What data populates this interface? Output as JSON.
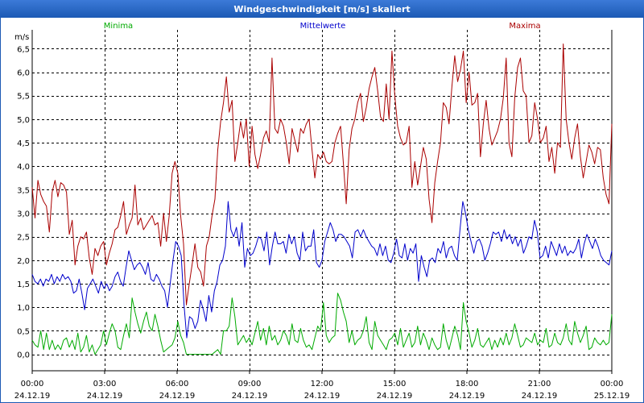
{
  "window": {
    "title": "Windgeschwindigkeit [m/s] skaliert",
    "title_bar_color": "#1c5ab4",
    "title_bar_color_light": "#3c7ad8"
  },
  "chart_data": {
    "type": "line",
    "title": "Windgeschwindigkeit [m/s] skaliert",
    "ylabel": "m/s",
    "xlabel": "",
    "ylim": [
      -0.35,
      6.9
    ],
    "xlim": [
      0,
      24
    ],
    "grid": true,
    "legend_position": "top",
    "y_ticks": [
      {
        "value": 0.0,
        "label": "0,0"
      },
      {
        "value": 0.5,
        "label": "0,5"
      },
      {
        "value": 1.0,
        "label": "1,0"
      },
      {
        "value": 1.5,
        "label": "1,5"
      },
      {
        "value": 2.0,
        "label": "2,0"
      },
      {
        "value": 2.5,
        "label": "2,5"
      },
      {
        "value": 3.0,
        "label": "3,0"
      },
      {
        "value": 3.5,
        "label": "3,5"
      },
      {
        "value": 4.0,
        "label": "4,0"
      },
      {
        "value": 4.5,
        "label": "4,5"
      },
      {
        "value": 5.0,
        "label": "5,0"
      },
      {
        "value": 5.5,
        "label": "5,5"
      },
      {
        "value": 6.0,
        "label": "6,0"
      },
      {
        "value": 6.5,
        "label": "6,5"
      }
    ],
    "x_ticks": [
      {
        "value": 0,
        "time": "00:00",
        "date": "24.12.19"
      },
      {
        "value": 3,
        "time": "03:00",
        "date": "24.12.19"
      },
      {
        "value": 6,
        "time": "06:00",
        "date": "24.12.19"
      },
      {
        "value": 9,
        "time": "09:00",
        "date": "24.12.19"
      },
      {
        "value": 12,
        "time": "12:00",
        "date": "24.12.19"
      },
      {
        "value": 15,
        "time": "15:00",
        "date": "24.12.19"
      },
      {
        "value": 18,
        "time": "18:00",
        "date": "24.12.19"
      },
      {
        "value": 21,
        "time": "21:00",
        "date": "24.12.19"
      },
      {
        "value": 24,
        "time": "00:00",
        "date": "25.12.19"
      }
    ],
    "x_step_hours": 0.166667,
    "series": [
      {
        "name": "Minima",
        "color": "#00aa00",
        "values": [
          0.3,
          0.2,
          0.15,
          0.5,
          0.1,
          0.45,
          0.1,
          0.3,
          0.1,
          0.2,
          0.1,
          0.3,
          0.35,
          0.15,
          0.3,
          0.1,
          0.45,
          0.05,
          0.15,
          0.4,
          0.05,
          0.2,
          0.0,
          0.1,
          0.2,
          0.5,
          0.2,
          0.45,
          0.65,
          0.5,
          0.15,
          0.1,
          0.4,
          0.65,
          0.35,
          1.2,
          0.9,
          0.65,
          0.45,
          0.7,
          0.9,
          0.6,
          0.5,
          0.85,
          0.6,
          0.3,
          0.05,
          0.1,
          0.15,
          0.2,
          0.35,
          0.7,
          0.4,
          0.25,
          0.0,
          0.0,
          0.0,
          0.0,
          0.0,
          0.0,
          0.0,
          0.0,
          0.0,
          0.0,
          0.05,
          0.1,
          0.0,
          0.5,
          0.5,
          0.6,
          1.2,
          0.8,
          0.2,
          0.3,
          0.4,
          0.25,
          0.35,
          0.2,
          0.45,
          0.7,
          0.3,
          0.55,
          0.2,
          0.6,
          0.3,
          0.4,
          0.2,
          0.3,
          0.5,
          0.4,
          0.2,
          0.65,
          0.3,
          0.25,
          0.55,
          0.3,
          0.15,
          0.2,
          0.1,
          0.35,
          0.6,
          0.5,
          1.1,
          0.4,
          0.25,
          0.35,
          0.4,
          1.3,
          1.15,
          0.9,
          0.7,
          0.25,
          0.5,
          0.2,
          0.3,
          0.35,
          0.5,
          0.8,
          0.25,
          0.1,
          0.7,
          0.4,
          0.3,
          0.2,
          0.1,
          0.3,
          0.35,
          0.45,
          0.2,
          0.55,
          0.15,
          0.3,
          0.45,
          0.15,
          0.25,
          0.6,
          0.2,
          0.45,
          0.3,
          0.1,
          0.35,
          0.2,
          0.1,
          0.15,
          0.65,
          0.3,
          0.1,
          0.35,
          0.6,
          0.4,
          0.1,
          1.1,
          0.7,
          0.45,
          0.15,
          0.3,
          0.55,
          0.2,
          0.15,
          0.25,
          0.35,
          0.1,
          0.3,
          0.15,
          0.35,
          0.2,
          0.45,
          0.2,
          0.35,
          0.65,
          0.4,
          0.15,
          0.2,
          0.35,
          0.3,
          0.25,
          0.45,
          0.2,
          0.3,
          0.25,
          0.55,
          0.15,
          0.2,
          0.45,
          0.25,
          0.2,
          0.35,
          0.65,
          0.3,
          0.2,
          0.7,
          0.45,
          0.25,
          0.4,
          0.6,
          0.1,
          0.15,
          0.35,
          0.25,
          0.2,
          0.3,
          0.2,
          0.25,
          0.85
        ]
      },
      {
        "name": "Mittelwerte",
        "color": "#0000cc",
        "values": [
          1.7,
          1.55,
          1.5,
          1.6,
          1.45,
          1.6,
          1.55,
          1.7,
          1.5,
          1.65,
          1.55,
          1.7,
          1.6,
          1.65,
          1.55,
          1.3,
          1.35,
          1.6,
          1.3,
          0.95,
          1.4,
          1.5,
          1.6,
          1.45,
          1.3,
          1.55,
          1.4,
          1.5,
          1.35,
          1.45,
          1.65,
          1.75,
          1.55,
          1.45,
          1.85,
          2.2,
          2.0,
          1.8,
          1.9,
          1.95,
          1.85,
          1.7,
          1.95,
          1.6,
          1.55,
          1.7,
          1.6,
          1.45,
          1.35,
          1.0,
          1.5,
          2.0,
          2.4,
          2.3,
          2.1,
          1.05,
          0.35,
          0.8,
          0.75,
          0.55,
          0.7,
          1.15,
          0.95,
          0.7,
          1.25,
          0.9,
          1.35,
          1.55,
          1.9,
          2.0,
          2.3,
          3.25,
          2.65,
          2.5,
          2.7,
          2.3,
          2.8,
          1.85,
          2.25,
          2.1,
          2.15,
          2.3,
          2.5,
          2.45,
          2.2,
          2.6,
          1.9,
          2.3,
          2.6,
          2.35,
          2.35,
          2.4,
          2.15,
          2.55,
          2.35,
          2.5,
          2.15,
          2.0,
          2.6,
          2.2,
          2.3,
          2.3,
          2.65,
          1.95,
          1.85,
          2.0,
          2.4,
          2.6,
          2.8,
          2.65,
          2.4,
          2.55,
          2.55,
          2.5,
          2.4,
          2.3,
          2.05,
          2.6,
          2.65,
          2.5,
          2.65,
          2.5,
          2.4,
          2.3,
          2.25,
          2.1,
          2.35,
          2.1,
          2.3,
          2.0,
          1.95,
          2.15,
          2.45,
          2.1,
          2.05,
          2.35,
          2.0,
          2.25,
          2.15,
          2.35,
          1.55,
          2.1,
          1.85,
          1.65,
          2.0,
          2.05,
          1.95,
          2.25,
          2.15,
          2.4,
          2.05,
          2.25,
          2.3,
          2.1,
          2.0,
          2.65,
          3.25,
          3.0,
          2.65,
          2.4,
          2.15,
          2.4,
          2.45,
          2.3,
          2.0,
          2.15,
          2.35,
          2.6,
          2.55,
          2.6,
          2.4,
          2.65,
          2.45,
          2.55,
          2.35,
          2.5,
          2.3,
          2.45,
          2.15,
          2.3,
          2.5,
          2.45,
          2.85,
          2.6,
          2.05,
          2.1,
          2.3,
          2.05,
          2.4,
          2.25,
          2.1,
          2.35,
          2.15,
          2.3,
          2.1,
          2.2,
          2.15,
          2.25,
          2.45,
          2.05,
          2.35,
          2.55,
          2.4,
          2.25,
          2.45,
          2.3,
          2.1,
          2.0,
          1.95,
          1.9,
          2.2
        ]
      },
      {
        "name": "Maxima",
        "color": "#aa0000",
        "values": [
          3.55,
          2.9,
          3.7,
          3.4,
          3.25,
          3.15,
          2.6,
          3.45,
          3.7,
          3.35,
          3.65,
          3.6,
          3.45,
          2.55,
          2.85,
          1.9,
          2.3,
          2.5,
          2.45,
          2.6,
          2.05,
          1.7,
          2.25,
          2.1,
          2.3,
          2.4,
          1.9,
          2.15,
          2.35,
          2.65,
          2.7,
          2.95,
          3.25,
          2.55,
          2.75,
          2.9,
          3.6,
          2.75,
          2.9,
          2.65,
          2.75,
          2.85,
          2.95,
          2.75,
          2.8,
          2.3,
          3.0,
          2.4,
          2.95,
          3.85,
          4.1,
          3.85,
          2.95,
          2.35,
          1.05,
          1.5,
          1.9,
          2.35,
          1.85,
          1.75,
          1.45,
          2.3,
          2.5,
          2.95,
          3.3,
          4.35,
          4.95,
          5.35,
          5.9,
          5.15,
          5.4,
          4.1,
          4.5,
          4.95,
          4.6,
          5.0,
          4.0,
          4.85,
          4.25,
          3.95,
          4.25,
          4.6,
          4.75,
          4.5,
          6.3,
          4.8,
          4.7,
          5.0,
          4.85,
          4.5,
          4.05,
          4.8,
          4.55,
          4.3,
          4.8,
          4.7,
          4.9,
          5.0,
          4.35,
          3.75,
          4.25,
          4.15,
          4.3,
          4.1,
          4.05,
          4.1,
          4.5,
          4.7,
          4.85,
          4.05,
          3.2,
          4.35,
          4.8,
          5.0,
          5.35,
          5.55,
          4.95,
          5.25,
          5.65,
          5.9,
          6.1,
          5.6,
          5.05,
          4.95,
          5.75,
          5.0,
          6.45,
          5.5,
          4.85,
          4.6,
          4.45,
          4.5,
          4.85,
          3.55,
          4.1,
          3.6,
          4.0,
          4.4,
          4.15,
          3.3,
          2.8,
          3.65,
          4.1,
          4.5,
          5.35,
          5.25,
          4.9,
          5.7,
          6.35,
          5.8,
          6.05,
          6.45,
          5.35,
          6.0,
          5.3,
          5.35,
          5.55,
          4.2,
          4.9,
          5.4,
          4.8,
          4.45,
          4.6,
          4.75,
          5.0,
          5.45,
          6.3,
          4.5,
          4.2,
          5.45,
          6.1,
          6.3,
          5.6,
          5.5,
          4.5,
          4.65,
          5.35,
          5.0,
          4.5,
          4.6,
          4.85,
          4.1,
          4.4,
          3.85,
          4.5,
          4.4,
          6.6,
          5.0,
          4.5,
          4.15,
          4.6,
          4.9,
          4.2,
          3.75,
          4.1,
          4.45,
          4.3,
          4.05,
          4.4,
          4.35,
          3.75,
          3.4,
          3.2,
          4.9
        ]
      }
    ]
  }
}
